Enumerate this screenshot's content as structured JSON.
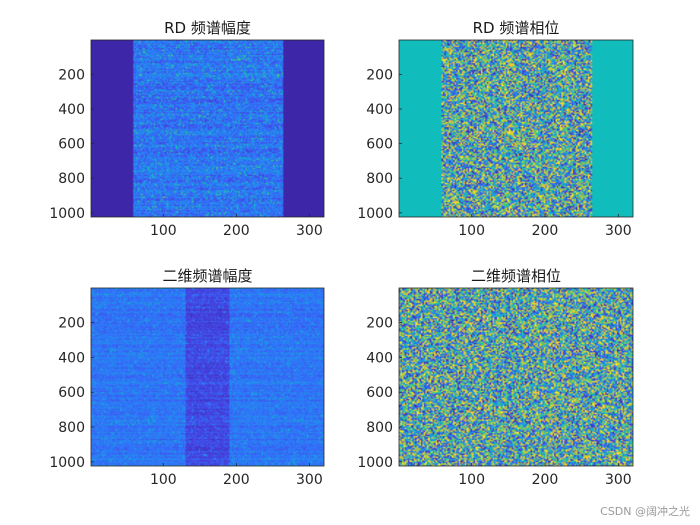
{
  "figure": {
    "watermark": "CSDN @阔冲之光"
  },
  "chart_data": [
    {
      "type": "heatmap",
      "title": "RD 频谱幅度",
      "xlim": [
        1,
        320
      ],
      "ylim": [
        1,
        1024
      ],
      "xticks": [
        100,
        200,
        300
      ],
      "yticks": [
        200,
        400,
        600,
        800,
        1000
      ],
      "x_tick_labels": [
        "100",
        "200",
        "300"
      ],
      "y_tick_labels": [
        "200",
        "400",
        "600",
        "800",
        "1000"
      ],
      "pattern": "bandlimited-magnitude",
      "active_x_range": [
        58,
        264
      ],
      "colormap": "parula",
      "background_color": "#3e26a8"
    },
    {
      "type": "heatmap",
      "title": "RD 频谱相位",
      "xlim": [
        1,
        320
      ],
      "ylim": [
        1,
        1024
      ],
      "xticks": [
        100,
        200,
        300
      ],
      "yticks": [
        200,
        400,
        600,
        800,
        1000
      ],
      "x_tick_labels": [
        "100",
        "200",
        "300"
      ],
      "y_tick_labels": [
        "200",
        "400",
        "600",
        "800",
        "1000"
      ],
      "pattern": "bandlimited-phase",
      "active_x_range": [
        58,
        264
      ],
      "colormap": "parula",
      "background_color": "#13beb8"
    },
    {
      "type": "heatmap",
      "title": "二维频谱幅度",
      "xlim": [
        1,
        320
      ],
      "ylim": [
        1,
        1024
      ],
      "xticks": [
        100,
        200,
        300
      ],
      "yticks": [
        200,
        400,
        600,
        800,
        1000
      ],
      "x_tick_labels": [
        "100",
        "200",
        "300"
      ],
      "y_tick_labels": [
        "200",
        "400",
        "600",
        "800",
        "1000"
      ],
      "pattern": "2d-magnitude",
      "low_x_range": [
        130,
        190
      ],
      "colormap": "parula"
    },
    {
      "type": "heatmap",
      "title": "二维频谱相位",
      "xlim": [
        1,
        320
      ],
      "ylim": [
        1,
        1024
      ],
      "xticks": [
        100,
        200,
        300
      ],
      "yticks": [
        200,
        400,
        600,
        800,
        1000
      ],
      "x_tick_labels": [
        "100",
        "200",
        "300"
      ],
      "y_tick_labels": [
        "200",
        "400",
        "600",
        "800",
        "1000"
      ],
      "pattern": "2d-phase",
      "colormap": "parula"
    }
  ]
}
